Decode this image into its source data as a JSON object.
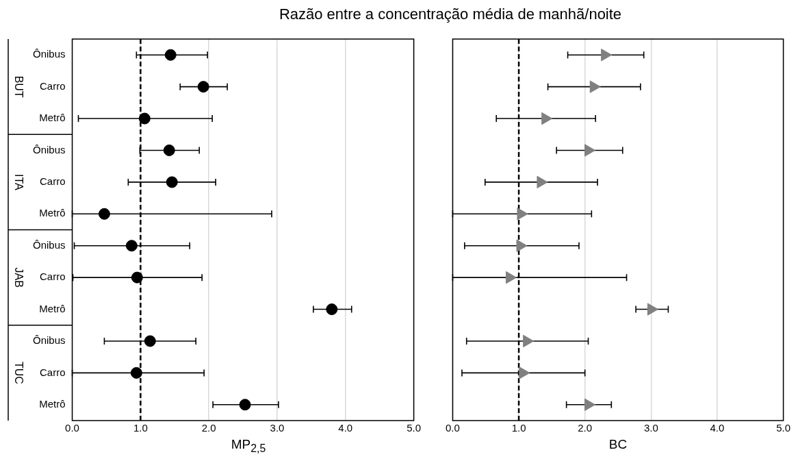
{
  "chart_data": [
    {
      "type": "scatter",
      "orientation": "horizontal",
      "title": "Razão entre a concentração média de manhã/noite",
      "xlabel": "MP$_{2,5}$",
      "categories": [
        "Ônibus",
        "Carro",
        "Metrô",
        "Ônibus",
        "Carro",
        "Metrô",
        "Ônibus",
        "Carro",
        "Metrô",
        "Ônibus",
        "Carro",
        "Metrô"
      ],
      "annotations": [
        "BUT",
        "ITA",
        "JAB",
        "TUC"
      ],
      "series": [
        {
          "color": "#000000",
          "marker": "circle",
          "values": [
            1.44,
            1.92,
            1.06,
            1.42,
            1.46,
            0.47,
            0.87,
            0.95,
            3.8,
            1.14,
            0.94,
            2.53
          ],
          "errors": [
            [
              0.94,
              1.98
            ],
            [
              1.58,
              2.27
            ],
            [
              0.09,
              2.05
            ],
            [
              0.99,
              1.86
            ],
            [
              0.82,
              2.1
            ],
            [
              0.0,
              2.92
            ],
            [
              0.03,
              1.72
            ],
            [
              0.01,
              1.9
            ],
            [
              3.53,
              4.09
            ],
            [
              0.47,
              1.81
            ],
            [
              0.0,
              1.93
            ],
            [
              2.06,
              3.02
            ]
          ]
        }
      ],
      "xlim": [
        0,
        5
      ],
      "xticks": [
        {
          "value": 0,
          "label": "0.0"
        },
        {
          "value": 1,
          "label": "1.0"
        },
        {
          "value": 2,
          "label": "2.0"
        },
        {
          "value": 3,
          "label": "3.0"
        },
        {
          "value": 4,
          "label": "4.0"
        },
        {
          "value": 5,
          "label": "5.0"
        }
      ],
      "ref_lines": [
        {
          "axis": "x",
          "value": 1,
          "color": "#000000",
          "line_style": "dashed"
        }
      ],
      "grid": "x",
      "legend": false
    },
    {
      "type": "scatter",
      "orientation": "horizontal",
      "xlabel": "BC",
      "categories": [
        null,
        null,
        null,
        null,
        null,
        null,
        null,
        null,
        null,
        null,
        null,
        null
      ],
      "series": [
        {
          "color": "#808080",
          "marker": "triangle",
          "values": [
            2.3,
            2.13,
            1.4,
            2.05,
            1.33,
            1.03,
            1.02,
            0.86,
            3.0,
            1.12,
            1.06,
            2.05
          ],
          "errors": [
            [
              1.74,
              2.89
            ],
            [
              1.44,
              2.84
            ],
            [
              0.66,
              2.16
            ],
            [
              1.57,
              2.57
            ],
            [
              0.49,
              2.19
            ],
            [
              0.0,
              2.1
            ],
            [
              0.18,
              1.91
            ],
            [
              0.0,
              2.63
            ],
            [
              2.77,
              3.26
            ],
            [
              0.21,
              2.05
            ],
            [
              0.14,
              2.0
            ],
            [
              1.72,
              2.4
            ]
          ]
        }
      ],
      "xlim": [
        0,
        5
      ],
      "xticks": [
        {
          "value": 0,
          "label": "0.0"
        },
        {
          "value": 1,
          "label": "1.0"
        },
        {
          "value": 2,
          "label": "2.0"
        },
        {
          "value": 3,
          "label": "3.0"
        },
        {
          "value": 4,
          "label": "4.0"
        },
        {
          "value": 5,
          "label": "5.0"
        }
      ],
      "ref_lines": [
        {
          "axis": "x",
          "value": 1,
          "color": "#000000",
          "line_style": "dashed"
        }
      ],
      "grid": "x",
      "legend": false,
      "tick_labels": "x"
    }
  ]
}
